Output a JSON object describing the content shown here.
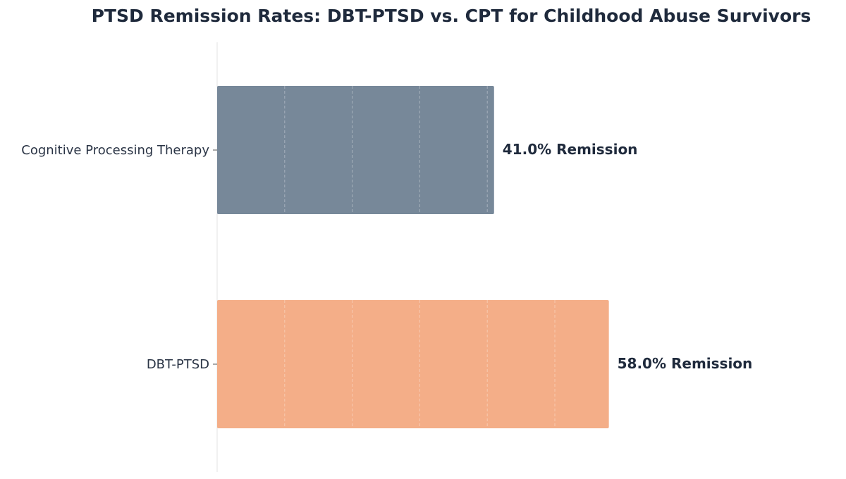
{
  "chart_data": {
    "type": "bar",
    "orientation": "horizontal",
    "title": "PTSD Remission Rates: DBT-PTSD vs. CPT for Childhood Abuse Survivors",
    "xlabel": "",
    "ylabel": "",
    "xlim": [
      0,
      70
    ],
    "grid": true,
    "categories": [
      "Cognitive Processing Therapy",
      "DBT-PTSD"
    ],
    "values": [
      41.0,
      58.0
    ],
    "value_labels": [
      "41.0% Remission",
      "58.0% Remission"
    ],
    "colors": [
      "#778899",
      "#f4ae88"
    ]
  }
}
